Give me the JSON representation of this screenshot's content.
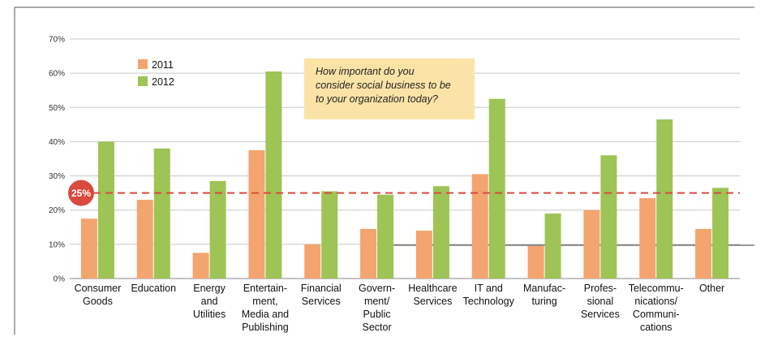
{
  "chart_data": {
    "type": "bar",
    "ylim": [
      0,
      70
    ],
    "y_ticks": [
      "0%",
      "10%",
      "20%",
      "30%",
      "40%",
      "50%",
      "60%",
      "70%"
    ],
    "grid": true,
    "legend_position": "top-left",
    "categories": [
      [
        "Consumer",
        "Goods"
      ],
      [
        "Education"
      ],
      [
        "Energy",
        "and",
        "Utilities"
      ],
      [
        "Entertain-",
        "ment,",
        "Media and",
        "Publishing"
      ],
      [
        "Financial",
        "Services"
      ],
      [
        "Govern-",
        "ment/",
        "Public",
        "Sector"
      ],
      [
        "Healthcare",
        "Services"
      ],
      [
        "IT and",
        "Technology"
      ],
      [
        "Manufac-",
        "turing"
      ],
      [
        "Profes-",
        "sional",
        "Services"
      ],
      [
        "Telecommu-",
        "nications/",
        "Communi-",
        "cations"
      ],
      [
        "Other"
      ]
    ],
    "series": [
      {
        "name": "2011",
        "color": "#f4a46e",
        "values": [
          17.5,
          23,
          7.5,
          37.5,
          10,
          14.5,
          14,
          30.5,
          9.5,
          20,
          23.5,
          14.5
        ]
      },
      {
        "name": "2012",
        "color": "#9dc454",
        "values": [
          40,
          38,
          28.5,
          60.5,
          25.5,
          24.5,
          27,
          52.5,
          19,
          36,
          46.5,
          26.5
        ]
      }
    ],
    "reference_line": {
      "value": 25,
      "label": "25%",
      "color": "#d94a3f"
    },
    "annotation": [
      "How important do you",
      "consider social business to be",
      "to your organization today?"
    ]
  }
}
